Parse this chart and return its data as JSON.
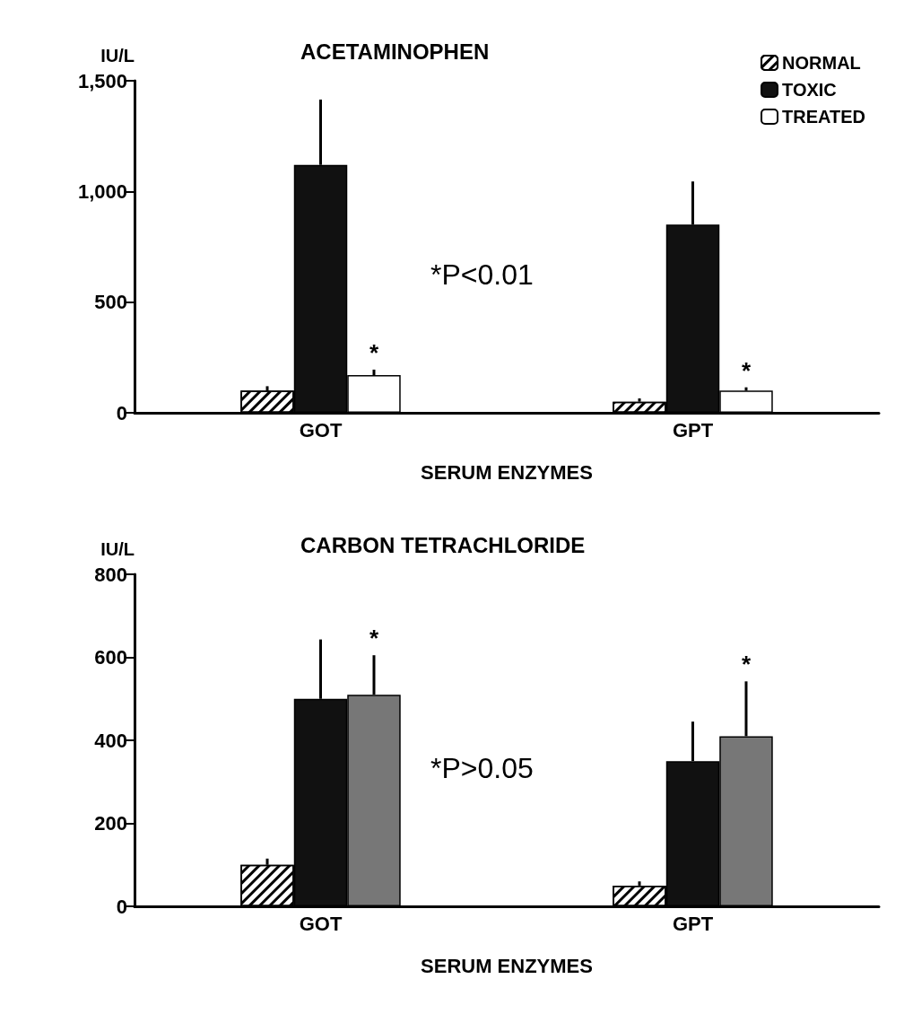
{
  "chart_data": [
    {
      "type": "bar",
      "title": "ACETAMINOPHEN",
      "xlabel": "SERUM ENZYMES",
      "ylabel": "IU/L",
      "categories": [
        "GOT",
        "GPT"
      ],
      "ylim": [
        0,
        1500
      ],
      "yticks": [
        0,
        500,
        {
          "value": 1000,
          "label": "1,000"
        },
        {
          "value": 1500,
          "label": "1,500"
        }
      ],
      "legend": "top right",
      "grid": false,
      "annotations": [
        "*P<0.01"
      ],
      "series": [
        {
          "name": "NORMAL",
          "color": "#ffffff",
          "values": [
            100,
            50
          ],
          "errors": [
            [
              100,
              120
            ],
            [
              50,
              65
            ]
          ]
        },
        {
          "name": "TOXIC",
          "color": "#111111",
          "values": [
            1120,
            850
          ],
          "errors": [
            [
              1120,
              1415
            ],
            [
              850,
              1045
            ]
          ]
        },
        {
          "name": "TREATED",
          "color": "#ffffff",
          "values": [
            170,
            100
          ],
          "errors": [
            [
              170,
              195
            ],
            [
              100,
              115
            ]
          ],
          "value_labels": [
            "*",
            "*"
          ]
        }
      ]
    },
    {
      "type": "bar",
      "title": "CARBON TETRACHLORIDE",
      "xlabel": "SERUM ENZYMES",
      "ylabel": "IU/L",
      "categories": [
        "GOT",
        "GPT"
      ],
      "ylim": [
        0,
        800
      ],
      "yticks": [
        0,
        200,
        400,
        600,
        800
      ],
      "legend": false,
      "grid": false,
      "annotations": [
        "*P>0.05"
      ],
      "series": [
        {
          "color": "#ffffff",
          "values": [
            100,
            50
          ],
          "errors": [
            [
              100,
              115
            ],
            [
              50,
              60
            ]
          ]
        },
        {
          "color": "#111111",
          "values": [
            500,
            350
          ],
          "errors": [
            [
              500,
              643
            ],
            [
              350,
              445
            ]
          ]
        },
        {
          "color": "#777777",
          "values": [
            510,
            410
          ],
          "errors": [
            [
              510,
              605
            ],
            [
              410,
              542
            ]
          ],
          "value_labels": [
            "*",
            "*"
          ]
        }
      ]
    }
  ]
}
